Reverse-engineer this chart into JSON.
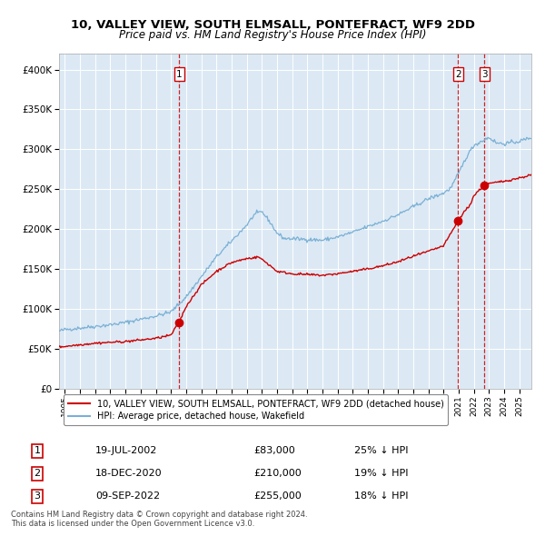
{
  "title": "10, VALLEY VIEW, SOUTH ELMSALL, PONTEFRACT, WF9 2DD",
  "subtitle": "Price paid vs. HM Land Registry's House Price Index (HPI)",
  "legend_label_red": "10, VALLEY VIEW, SOUTH ELMSALL, PONTEFRACT, WF9 2DD (detached house)",
  "legend_label_blue": "HPI: Average price, detached house, Wakefield",
  "footer1": "Contains HM Land Registry data © Crown copyright and database right 2024.",
  "footer2": "This data is licensed under the Open Government Licence v3.0.",
  "sales": [
    {
      "num": 1,
      "date": "19-JUL-2002",
      "price": 83000,
      "note": "25% ↓ HPI",
      "year": 2002.54
    },
    {
      "num": 2,
      "date": "18-DEC-2020",
      "price": 210000,
      "note": "19% ↓ HPI",
      "year": 2020.96
    },
    {
      "num": 3,
      "date": "09-SEP-2022",
      "price": 255000,
      "note": "18% ↓ HPI",
      "year": 2022.69
    }
  ],
  "plot_bg": "#dce9f5",
  "red_color": "#cc0000",
  "blue_color": "#7ab0d4",
  "grid_color": "#ffffff",
  "ylim": [
    0,
    420000
  ],
  "xlim_start": 1994.6,
  "xlim_end": 2025.8,
  "yticks": [
    0,
    50000,
    100000,
    150000,
    200000,
    250000,
    300000,
    350000,
    400000
  ],
  "ylabels": [
    "£0",
    "£50K",
    "£100K",
    "£150K",
    "£200K",
    "£250K",
    "£300K",
    "£350K",
    "£400K"
  ]
}
